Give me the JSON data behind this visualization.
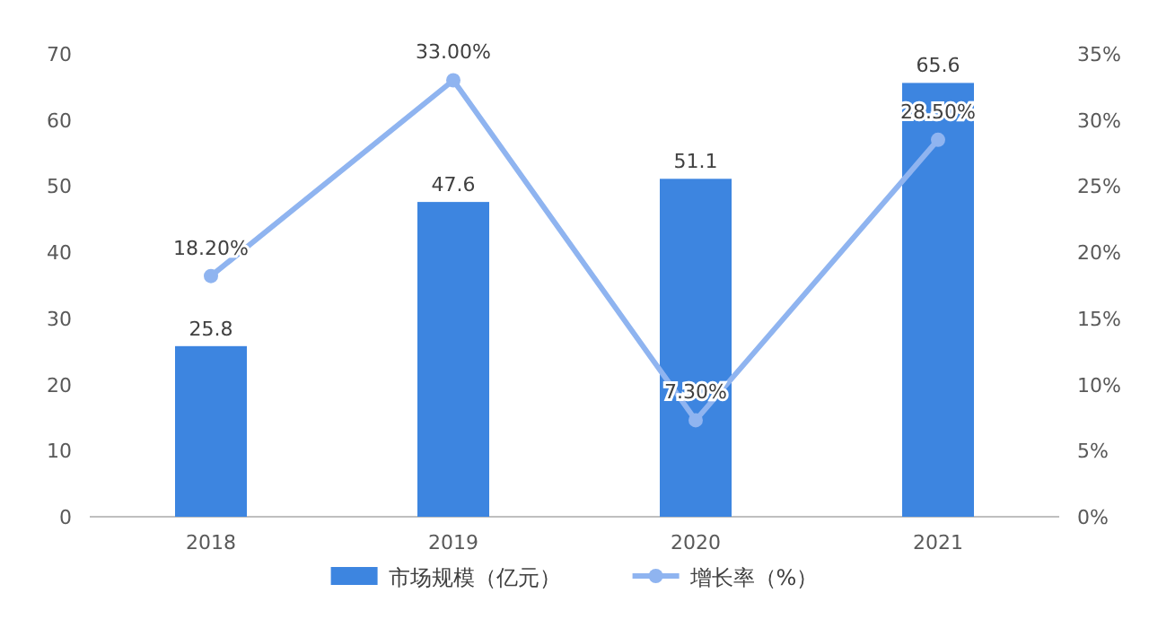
{
  "chart_data": {
    "type": "bar",
    "categories": [
      "2018",
      "2019",
      "2020",
      "2021"
    ],
    "series": [
      {
        "name": "市场规模（亿元）",
        "color": "#3d85e0",
        "values": [
          25.8,
          47.6,
          51.1,
          65.6
        ]
      },
      {
        "name": "增长率（%）",
        "type": "line",
        "axis": "y2",
        "marker": "circle",
        "color": "#8fb4f0",
        "values": [
          18.2,
          33.0,
          7.3,
          28.5
        ],
        "value_labels": [
          "18.20%",
          "33.00%",
          "7.30%",
          "28.50%"
        ]
      }
    ],
    "ylim": [
      0,
      70
    ],
    "yticks": [
      0,
      10,
      20,
      30,
      40,
      50,
      60,
      70
    ],
    "y2lim": [
      0,
      35
    ],
    "y2ticks": [
      {
        "value": 0,
        "label": "0%"
      },
      {
        "value": 5,
        "label": "5%"
      },
      {
        "value": 10,
        "label": "10%"
      },
      {
        "value": 15,
        "label": "15%"
      },
      {
        "value": 20,
        "label": "20%"
      },
      {
        "value": 25,
        "label": "25%"
      },
      {
        "value": 30,
        "label": "30%"
      },
      {
        "value": 35,
        "label": "35%"
      }
    ],
    "legend": "bottom",
    "data_labels": true
  }
}
